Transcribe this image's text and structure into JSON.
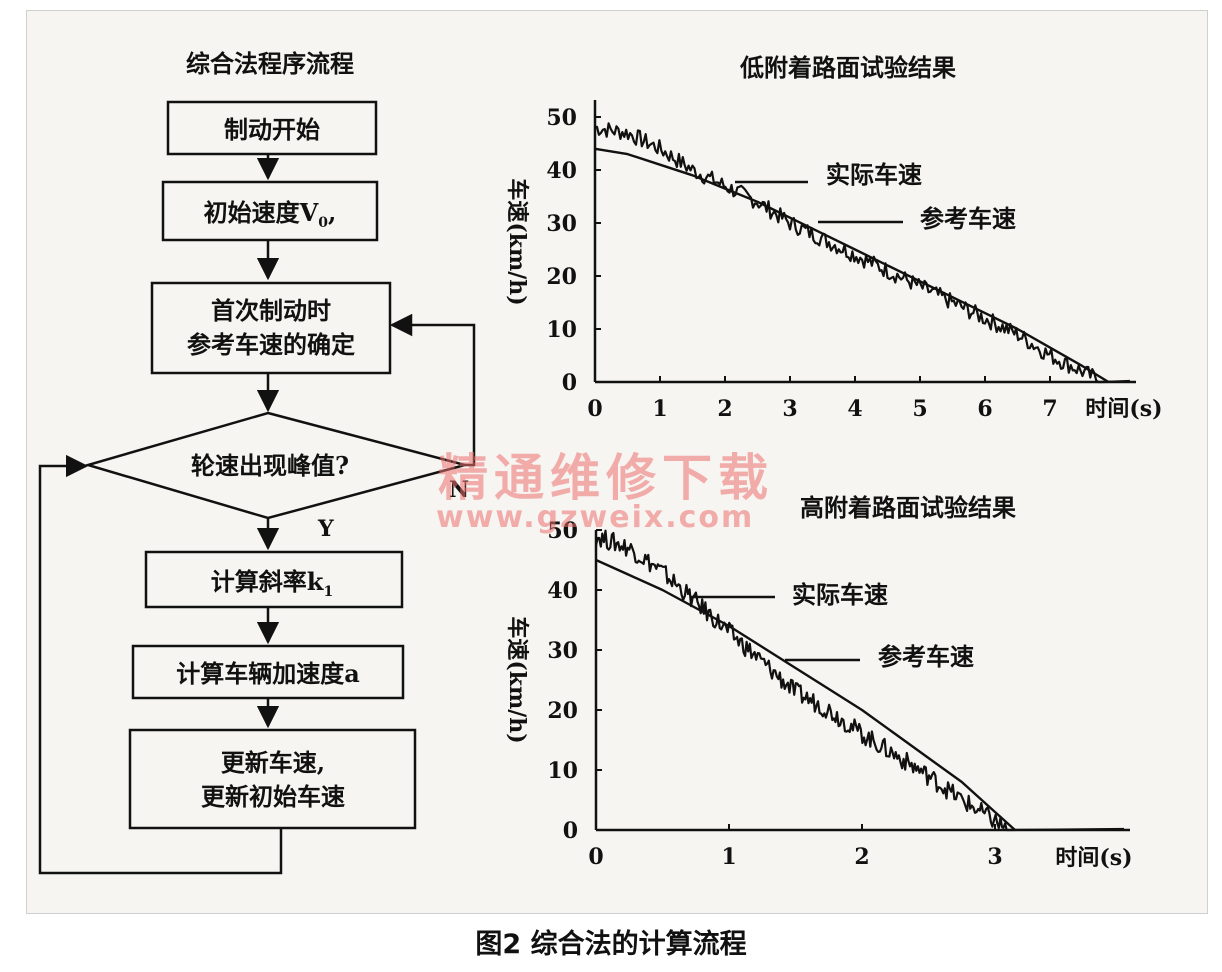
{
  "caption": "图2 综合法的计算流程",
  "watermark": {
    "cn": "精通维修下载",
    "url": "www.gzweix.com"
  },
  "flowchart": {
    "title": "综合法程序流程",
    "steps": {
      "start": "制动开始",
      "init_pre": "初始速度V",
      "init_sub": "0",
      "init_post": ",",
      "first_1": "首次制动时",
      "first_2": "参考车速的确定",
      "decision": "轮速出现峰值?",
      "calc_slope_pre": "计算斜率k",
      "calc_slope_sub": "1",
      "calc_accel": "计算车辆加速度a",
      "update_1": "更新车速,",
      "update_2": "更新初始车速"
    },
    "labels": {
      "yes": "Y",
      "no": "N"
    }
  },
  "chart_data": [
    {
      "type": "line",
      "title": "低附着路面试验结果",
      "ylabel": "车速(km/h)",
      "xlabel": "时间(s)",
      "xlim": [
        0,
        8.2
      ],
      "ylim": [
        0,
        50
      ],
      "xticks": [
        0,
        1,
        2,
        3,
        4,
        5,
        6,
        7
      ],
      "yticks": [
        0,
        10,
        20,
        30,
        40,
        50
      ],
      "series": [
        {
          "name": "实际车速",
          "kind": "noisy",
          "x": [
            0,
            0.5,
            1,
            1.5,
            2,
            2.5,
            3,
            3.5,
            4,
            4.5,
            5,
            5.5,
            6,
            6.5,
            7,
            7.5,
            7.8
          ],
          "y": [
            48,
            47,
            44,
            40,
            37,
            34,
            30,
            27,
            24,
            21,
            18,
            15,
            12,
            9,
            5,
            2,
            0
          ]
        },
        {
          "name": "参考车速",
          "kind": "smooth",
          "x": [
            0,
            0.5,
            1,
            1.5,
            2,
            2.5,
            3,
            3.5,
            4,
            4.5,
            5,
            5.5,
            6,
            6.5,
            7,
            7.5,
            7.9
          ],
          "y": [
            44,
            43,
            41,
            39,
            36.5,
            34,
            31,
            28,
            25,
            22,
            19,
            16,
            13,
            10,
            6.5,
            3,
            0
          ]
        }
      ],
      "annotations": [
        "实际车速",
        "参考车速"
      ]
    },
    {
      "type": "line",
      "title": "高附着路面试验结果",
      "ylabel": "车速(km/h)",
      "xlabel": "时间(s)",
      "xlim": [
        0,
        4
      ],
      "ylim": [
        0,
        50
      ],
      "xticks": [
        0,
        1,
        2,
        3
      ],
      "yticks": [
        0,
        10,
        20,
        30,
        40,
        50
      ],
      "series": [
        {
          "name": "实际车速",
          "kind": "noisy",
          "x": [
            0,
            0.25,
            0.5,
            0.75,
            1,
            1.25,
            1.5,
            1.75,
            2,
            2.25,
            2.5,
            2.75,
            3,
            3.1
          ],
          "y": [
            49,
            47,
            43,
            38,
            33,
            28,
            23,
            20,
            16,
            12.5,
            9,
            5,
            1.5,
            0
          ]
        },
        {
          "name": "参考车速",
          "kind": "smooth",
          "x": [
            0,
            0.25,
            0.5,
            0.75,
            1,
            1.25,
            1.5,
            1.75,
            2,
            2.25,
            2.5,
            2.75,
            3,
            3.15
          ],
          "y": [
            45,
            42.5,
            40,
            37,
            34,
            30.5,
            27,
            23.5,
            20,
            16,
            12,
            8,
            3,
            0
          ]
        }
      ],
      "annotations": [
        "实际车速",
        "参考车速"
      ]
    }
  ]
}
